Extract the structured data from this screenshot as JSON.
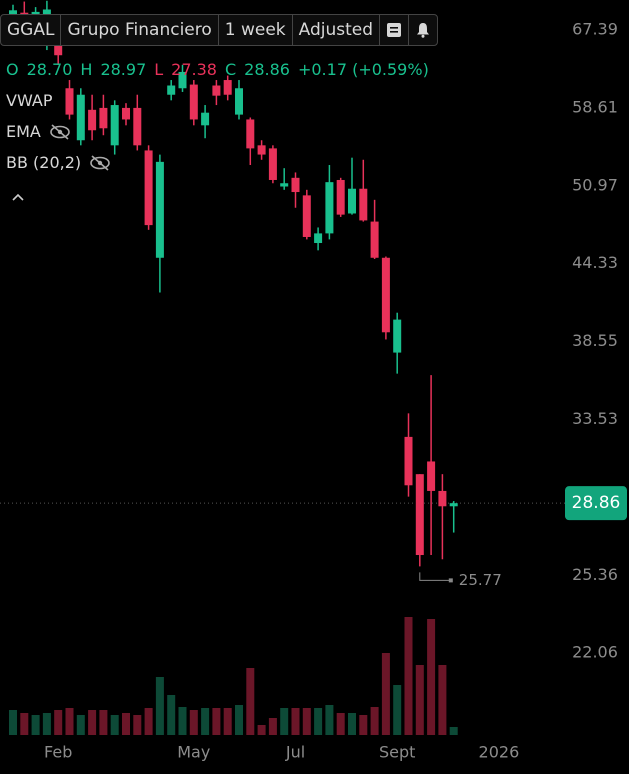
{
  "chart_data": {
    "type": "candlestick",
    "symbol": "GGAL",
    "name": "Grupo Financiero",
    "interval": "1 week",
    "adjustment": "Adjusted",
    "ohlc_legend": [
      {
        "key": "O",
        "value": "28.70"
      },
      {
        "key": "H",
        "value": "28.97"
      },
      {
        "key": "L",
        "value": "27.38"
      },
      {
        "key": "C",
        "value": "28.86"
      }
    ],
    "change": "+0.17 (+0.59%)",
    "indicators": [
      "VWAP",
      "EMA",
      "BB (20,2)"
    ],
    "categories": [
      null,
      null,
      null,
      null,
      "Feb",
      null,
      null,
      null,
      null,
      null,
      null,
      null,
      null,
      null,
      null,
      null,
      "May",
      null,
      null,
      null,
      null,
      null,
      null,
      null,
      null,
      "Jul",
      null,
      null,
      null,
      null,
      null,
      null,
      null,
      null,
      "Sept",
      null,
      null,
      null,
      null,
      null,
      null,
      null,
      null,
      "2026"
    ],
    "open": [
      66.5,
      69.5,
      66.8,
      66.9,
      68.6,
      60.7,
      55.3,
      58.4,
      58.6,
      54.8,
      58.6,
      58.6,
      54.3,
      44.8,
      60.0,
      60.7,
      61.1,
      56.8,
      61.0,
      61.6,
      57.9,
      57.4,
      54.8,
      54.5,
      50.9,
      51.7,
      50.1,
      46.0,
      46.8,
      51.5,
      48.5,
      50.7,
      47.8,
      44.8,
      37.8,
      32.5,
      30.4,
      31.1,
      29.5,
      28.7,
      null,
      null,
      null,
      null
    ],
    "high": [
      70.5,
      70.9,
      70.2,
      71.0,
      69.3,
      61.6,
      60.7,
      60.0,
      60.0,
      59.4,
      59.1,
      60.0,
      54.8,
      53.9,
      61.6,
      63.3,
      61.6,
      58.9,
      61.6,
      62.1,
      61.6,
      57.6,
      55.3,
      54.8,
      52.6,
      52.2,
      50.6,
      47.3,
      52.9,
      51.7,
      53.6,
      53.4,
      49.7,
      44.9,
      40.6,
      33.9,
      30.4,
      36.3,
      30.4,
      28.97,
      null,
      null,
      null,
      null
    ],
    "low": [
      65.5,
      65.8,
      65.9,
      65.0,
      63.3,
      57.4,
      54.8,
      55.3,
      55.8,
      53.9,
      56.8,
      54.3,
      47.1,
      42.1,
      59.4,
      60.3,
      56.8,
      55.5,
      58.9,
      59.4,
      57.4,
      52.9,
      53.4,
      51.2,
      50.6,
      49.0,
      46.3,
      45.4,
      46.3,
      48.2,
      48.4,
      47.8,
      44.7,
      38.7,
      36.4,
      29.2,
      25.77,
      26.3,
      26.1,
      27.38,
      null,
      null,
      null,
      null
    ],
    "close": [
      69.8,
      66.8,
      69.6,
      69.9,
      64.4,
      57.9,
      60.0,
      56.3,
      56.5,
      58.9,
      57.4,
      54.8,
      47.5,
      53.2,
      61.0,
      62.5,
      57.4,
      58.1,
      59.9,
      60.0,
      60.7,
      54.5,
      53.9,
      51.5,
      51.2,
      50.4,
      46.5,
      46.8,
      51.3,
      48.4,
      50.7,
      47.9,
      44.8,
      39.2,
      40.1,
      29.8,
      26.3,
      29.5,
      28.7,
      28.86,
      null,
      null,
      null,
      null
    ],
    "volume": [
      25,
      22,
      20,
      22,
      25,
      27,
      20,
      25,
      25,
      20,
      22,
      20,
      27,
      58,
      40,
      28,
      25,
      27,
      27,
      27,
      30,
      67,
      10,
      17,
      27,
      27,
      27,
      27,
      30,
      22,
      22,
      20,
      28,
      82,
      50,
      118,
      70,
      116,
      70,
      8,
      null,
      null,
      null,
      null
    ],
    "up_color": "#19c08e",
    "down_color": "#e8325a",
    "up_volume_color": "#0d4a37",
    "down_volume_color": "#6b1628",
    "last_price_color": "#12a57c",
    "log_scale": true,
    "ylim": [
      18.88,
      71.1
    ],
    "yticks": [
      67.39,
      58.61,
      50.97,
      44.33,
      38.55,
      33.53,
      25.36,
      22.06
    ],
    "last_price": 28.86,
    "low_marker": 25.77
  }
}
